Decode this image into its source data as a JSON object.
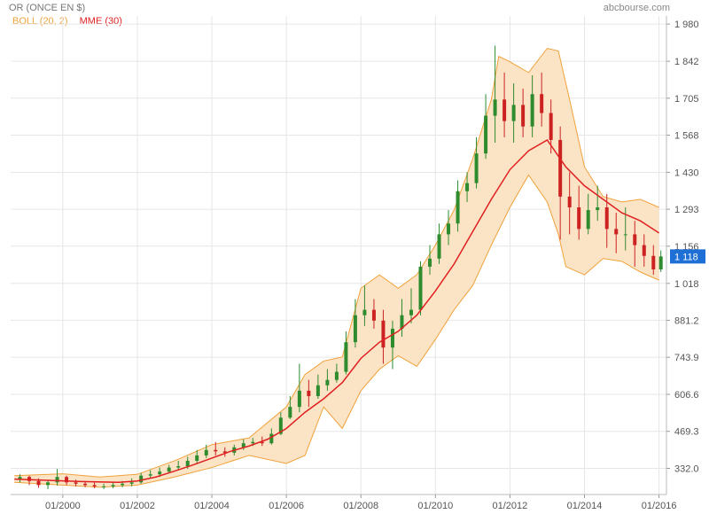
{
  "header": {
    "title": "OR (ONCE EN $)",
    "brand": "abcbourse.com"
  },
  "legend": {
    "boll": "BOLL (20, 2)",
    "mme": "MME (30)"
  },
  "colors": {
    "band_fill": "#fbe3c6",
    "band_line": "#f0a23a",
    "mme_line": "#e02020",
    "candle_up": "#2e8b2e",
    "candle_down": "#cc2222",
    "grid": "#e6e6e6",
    "last_price_box": "#1e6fd6"
  },
  "chart_data": {
    "type": "candlestick",
    "title": "OR (ONCE EN $)",
    "x_tick_labels": [
      "01/2000",
      "01/2002",
      "01/2004",
      "01/2006",
      "01/2008",
      "01/2010",
      "01/2012",
      "01/2014",
      "01/2016"
    ],
    "y_tick_labels": [
      "1 980",
      "1 842",
      "1 705",
      "1 568",
      "1 430",
      "1 293",
      "1 156",
      "1 018",
      "881.2",
      "743.9",
      "606.6",
      "469.3",
      "332.0"
    ],
    "y_ticks": [
      1980,
      1842,
      1705,
      1568,
      1430,
      1293,
      1156,
      1018,
      881.2,
      743.9,
      606.6,
      469.3,
      332.0
    ],
    "xlim": [
      1998.6,
      2016.2
    ],
    "ylim": [
      235,
      2010
    ],
    "last_price": 1118,
    "last_price_label": "1 118",
    "grid": true,
    "legend_position": "top-left",
    "series": [
      {
        "name": "MME (30)",
        "kind": "line",
        "x": [
          1998.7,
          1999.5,
          2000.5,
          2001.5,
          2002.0,
          2002.5,
          2003.0,
          2003.5,
          2004.0,
          2004.5,
          2005.0,
          2005.5,
          2006.0,
          2006.5,
          2007.0,
          2007.5,
          2008.0,
          2008.5,
          2009.0,
          2009.5,
          2010.0,
          2010.5,
          2011.0,
          2011.5,
          2012.0,
          2012.5,
          2013.0,
          2013.5,
          2014.0,
          2014.5,
          2015.0,
          2015.5,
          2016.0
        ],
        "y": [
          292,
          288,
          283,
          280,
          285,
          300,
          322,
          345,
          370,
          395,
          415,
          440,
          480,
          540,
          590,
          650,
          740,
          800,
          840,
          900,
          990,
          1090,
          1210,
          1330,
          1440,
          1510,
          1550,
          1450,
          1380,
          1330,
          1280,
          1250,
          1205
        ]
      },
      {
        "name": "BOLL (20, 2) upper",
        "kind": "line",
        "x": [
          1998.7,
          2000.0,
          2001.0,
          2002.0,
          2003.0,
          2004.0,
          2005.0,
          2006.0,
          2006.5,
          2007.0,
          2007.5,
          2008.0,
          2008.5,
          2009.0,
          2009.5,
          2010.0,
          2010.5,
          2011.0,
          2011.5,
          2011.7,
          2012.0,
          2012.5,
          2013.0,
          2013.3,
          2013.6,
          2014.0,
          2014.5,
          2015.0,
          2015.5,
          2016.0
        ],
        "y": [
          305,
          312,
          300,
          310,
          360,
          420,
          445,
          560,
          680,
          730,
          745,
          1000,
          1050,
          1000,
          1050,
          1160,
          1290,
          1480,
          1700,
          1860,
          1840,
          1800,
          1890,
          1880,
          1700,
          1450,
          1340,
          1320,
          1330,
          1300
        ]
      },
      {
        "name": "BOLL (20, 2) lower",
        "kind": "line",
        "x": [
          1998.7,
          2000.0,
          2001.0,
          2002.0,
          2003.0,
          2004.0,
          2005.0,
          2006.0,
          2006.5,
          2007.0,
          2007.5,
          2008.0,
          2008.5,
          2009.0,
          2009.5,
          2010.0,
          2010.5,
          2011.0,
          2011.5,
          2012.0,
          2012.5,
          2013.0,
          2013.3,
          2013.5,
          2014.0,
          2014.5,
          2015.0,
          2015.5,
          2016.0
        ],
        "y": [
          280,
          270,
          262,
          270,
          300,
          335,
          380,
          350,
          380,
          560,
          480,
          620,
          700,
          750,
          710,
          810,
          920,
          1010,
          1160,
          1300,
          1420,
          1320,
          1200,
          1080,
          1050,
          1110,
          1100,
          1060,
          1030
        ]
      },
      {
        "name": "OR (ONCE EN $)",
        "kind": "candles",
        "x": [
          1998.85,
          1999.1,
          1999.35,
          1999.6,
          1999.85,
          2000.1,
          2000.35,
          2000.6,
          2000.85,
          2001.1,
          2001.35,
          2001.6,
          2001.85,
          2002.1,
          2002.35,
          2002.6,
          2002.85,
          2003.1,
          2003.35,
          2003.6,
          2003.85,
          2004.1,
          2004.35,
          2004.6,
          2004.85,
          2005.1,
          2005.35,
          2005.6,
          2005.85,
          2006.1,
          2006.35,
          2006.6,
          2006.85,
          2007.1,
          2007.35,
          2007.6,
          2007.85,
          2008.1,
          2008.35,
          2008.6,
          2008.85,
          2009.1,
          2009.35,
          2009.6,
          2009.85,
          2010.1,
          2010.35,
          2010.6,
          2010.85,
          2011.1,
          2011.35,
          2011.6,
          2011.85,
          2012.1,
          2012.35,
          2012.6,
          2012.85,
          2013.1,
          2013.35,
          2013.6,
          2013.85,
          2014.1,
          2014.35,
          2014.6,
          2014.85,
          2015.1,
          2015.35,
          2015.6,
          2015.85,
          2016.05
        ],
        "open": [
          290,
          300,
          285,
          270,
          280,
          300,
          280,
          275,
          270,
          265,
          265,
          270,
          275,
          280,
          305,
          310,
          320,
          335,
          340,
          360,
          380,
          400,
          395,
          390,
          410,
          425,
          430,
          425,
          460,
          520,
          560,
          620,
          600,
          640,
          660,
          690,
          800,
          900,
          920,
          880,
          780,
          850,
          900,
          920,
          1080,
          1110,
          1200,
          1240,
          1360,
          1390,
          1500,
          1640,
          1700,
          1620,
          1680,
          1600,
          1720,
          1650,
          1550,
          1340,
          1300,
          1220,
          1290,
          1300,
          1220,
          1200,
          1200,
          1160,
          1120,
          1070
        ],
        "close": [
          300,
          285,
          270,
          280,
          300,
          280,
          275,
          270,
          265,
          265,
          270,
          275,
          280,
          305,
          310,
          320,
          335,
          340,
          360,
          380,
          400,
          395,
          390,
          410,
          425,
          430,
          425,
          460,
          520,
          560,
          620,
          600,
          640,
          660,
          690,
          800,
          900,
          920,
          880,
          780,
          850,
          900,
          920,
          1080,
          1110,
          1200,
          1240,
          1360,
          1390,
          1500,
          1640,
          1700,
          1620,
          1680,
          1600,
          1720,
          1650,
          1550,
          1340,
          1300,
          1220,
          1290,
          1300,
          1220,
          1200,
          1200,
          1160,
          1120,
          1070,
          1118
        ],
        "high": [
          310,
          305,
          295,
          290,
          330,
          305,
          290,
          285,
          280,
          275,
          280,
          285,
          295,
          315,
          325,
          335,
          345,
          360,
          375,
          400,
          420,
          430,
          410,
          420,
          440,
          445,
          450,
          480,
          540,
          600,
          720,
          660,
          680,
          700,
          720,
          840,
          960,
          1010,
          960,
          920,
          880,
          960,
          1000,
          1100,
          1160,
          1240,
          1290,
          1400,
          1430,
          1560,
          1720,
          1900,
          1800,
          1760,
          1740,
          1790,
          1800,
          1700,
          1600,
          1430,
          1380,
          1350,
          1380,
          1350,
          1280,
          1300,
          1250,
          1200,
          1160,
          1140
        ],
        "low": [
          280,
          270,
          260,
          255,
          268,
          270,
          265,
          262,
          258,
          255,
          258,
          262,
          265,
          275,
          295,
          300,
          315,
          325,
          330,
          350,
          370,
          380,
          375,
          380,
          400,
          415,
          415,
          420,
          455,
          515,
          540,
          560,
          590,
          620,
          650,
          680,
          780,
          860,
          850,
          720,
          700,
          820,
          870,
          900,
          1050,
          1090,
          1160,
          1210,
          1320,
          1370,
          1480,
          1540,
          1560,
          1540,
          1560,
          1560,
          1600,
          1500,
          1180,
          1200,
          1180,
          1200,
          1250,
          1150,
          1130,
          1140,
          1080,
          1080,
          1050,
          1060
        ]
      }
    ]
  }
}
